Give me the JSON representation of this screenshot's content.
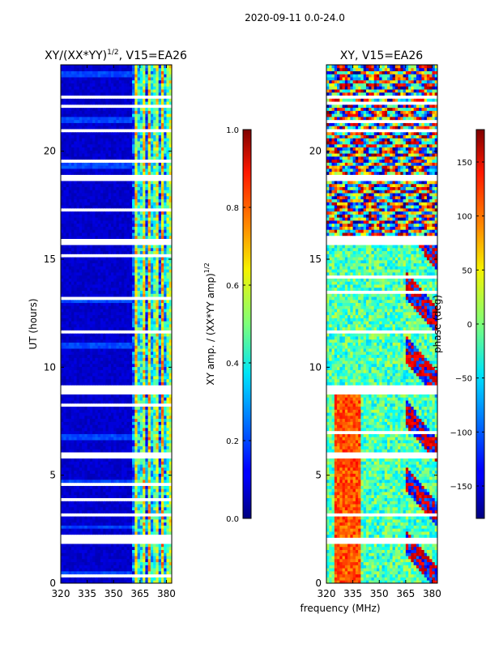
{
  "figure": {
    "suptitle": "2020-09-11 0.0-24.0",
    "xlabel": "frequency (MHz)"
  },
  "chart_data": [
    {
      "type": "heatmap",
      "title": "XY/(XX*YY)",
      "title_superscript": "1/2",
      "title_suffix": ", V15=EA26",
      "xlabel": "",
      "ylabel": "UT (hours)",
      "x_ticks": [
        320,
        335,
        350,
        365,
        380
      ],
      "x_tick_labels": [
        "320",
        "335",
        "350",
        "365",
        "380"
      ],
      "y_ticks": [
        0,
        5,
        10,
        15,
        20
      ],
      "y_tick_labels": [
        "0",
        "5",
        "10",
        "15",
        "20"
      ],
      "xlim": [
        320,
        383
      ],
      "ylim": [
        0,
        24
      ],
      "colormap": "jet",
      "colorbar": {
        "label": "XY amp. / (XX*YY amp)",
        "label_superscript": "1/2",
        "range": [
          0.0,
          1.0
        ],
        "ticks": [
          0.0,
          0.2,
          0.4,
          0.6,
          0.8,
          1.0
        ],
        "tick_labels": [
          "0.0",
          "0.2",
          "0.4",
          "0.6",
          "0.8",
          "1.0"
        ]
      },
      "data_description": "mostly low amplitude (~0.0-0.1) below 360 MHz; bright striped channels (~0.3-0.7) between 360 and 383 MHz",
      "low_region_level": 0.05,
      "high_band": [
        360,
        383
      ],
      "high_band_level": 0.45,
      "flagged_time_ranges": [
        [
          8.8,
          9.15
        ],
        [
          5.85,
          6.1
        ],
        [
          1.85,
          2.05
        ],
        [
          15.7,
          15.9
        ],
        [
          18.7,
          18.85
        ],
        [
          20.9,
          21.05
        ],
        [
          22.4,
          22.55
        ],
        [
          17.3,
          17.4
        ],
        [
          13.5,
          13.6
        ],
        [
          11.6,
          11.7
        ],
        [
          7.7,
          7.8
        ],
        [
          4.2,
          4.3
        ],
        [
          3.1,
          3.2
        ]
      ]
    },
    {
      "type": "heatmap",
      "title": "XY, V15=EA26",
      "xlabel": "",
      "ylabel": "",
      "x_ticks": [
        320,
        335,
        350,
        365,
        380
      ],
      "x_tick_labels": [
        "320",
        "335",
        "350",
        "365",
        "380"
      ],
      "y_ticks": [
        0,
        5,
        10,
        15,
        20
      ],
      "y_tick_labels": [
        "0",
        "5",
        "10",
        "15",
        "20"
      ],
      "xlim": [
        320,
        383
      ],
      "ylim": [
        0,
        24
      ],
      "colormap": "jet",
      "colorbar": {
        "label": "phase (deg)",
        "range": [
          -180,
          180
        ],
        "ticks": [
          -150,
          -100,
          -50,
          0,
          50,
          100,
          150
        ],
        "tick_labels": [
          "−150",
          "−100",
          "−50",
          "0",
          "50",
          "100",
          "150"
        ]
      },
      "data_description": "phase wraps across full range with horizontal bands after 16 h; noisy mid-range values (~0 deg) with red/orange streaks near 325-340 MHz and 365-383 MHz",
      "flagged_time_ranges": [
        [
          8.8,
          9.15
        ],
        [
          5.85,
          6.1
        ],
        [
          1.85,
          2.05
        ],
        [
          15.7,
          15.9
        ],
        [
          18.7,
          18.85
        ],
        [
          20.9,
          21.05
        ],
        [
          22.4,
          22.55
        ],
        [
          17.3,
          17.4
        ],
        [
          13.5,
          13.6
        ],
        [
          11.6,
          11.7
        ],
        [
          7.7,
          7.8
        ],
        [
          4.2,
          4.3
        ],
        [
          3.1,
          3.2
        ]
      ]
    }
  ]
}
